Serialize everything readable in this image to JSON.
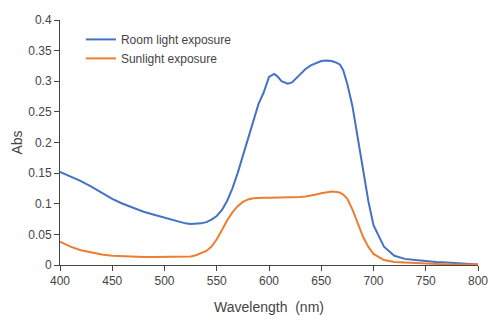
{
  "chart_data": {
    "type": "line",
    "xlabel": "Wavelength  (nm)",
    "ylabel": "Abs",
    "xlim": [
      400,
      800
    ],
    "ylim": [
      0,
      0.4
    ],
    "xticks": [
      400,
      450,
      500,
      550,
      600,
      650,
      700,
      750,
      800
    ],
    "yticks": [
      0,
      0.05,
      0.1,
      0.15,
      0.2,
      0.25,
      0.3,
      0.35,
      0.4
    ],
    "grid": false,
    "legend": "upper left",
    "series": [
      {
        "name": "Room light exposure",
        "color": "#4472C4",
        "x": [
          400,
          410,
          420,
          430,
          440,
          450,
          460,
          470,
          480,
          490,
          500,
          510,
          515,
          520,
          525,
          530,
          535,
          540,
          545,
          550,
          555,
          560,
          565,
          570,
          575,
          580,
          585,
          590,
          595,
          600,
          605,
          608,
          612,
          618,
          622,
          626,
          630,
          635,
          640,
          645,
          650,
          655,
          660,
          665,
          668,
          671,
          675,
          680,
          685,
          690,
          695,
          700,
          710,
          720,
          730,
          740,
          750,
          760,
          770,
          780,
          790,
          800
        ],
        "values": [
          0.152,
          0.145,
          0.137,
          0.128,
          0.118,
          0.108,
          0.1,
          0.093,
          0.087,
          0.082,
          0.077,
          0.072,
          0.07,
          0.068,
          0.067,
          0.067,
          0.068,
          0.07,
          0.074,
          0.08,
          0.09,
          0.105,
          0.125,
          0.15,
          0.178,
          0.208,
          0.238,
          0.263,
          0.282,
          0.307,
          0.312,
          0.308,
          0.3,
          0.296,
          0.298,
          0.305,
          0.312,
          0.32,
          0.326,
          0.33,
          0.333,
          0.334,
          0.333,
          0.33,
          0.327,
          0.318,
          0.295,
          0.258,
          0.205,
          0.152,
          0.105,
          0.065,
          0.03,
          0.015,
          0.01,
          0.008,
          0.006,
          0.005,
          0.004,
          0.003,
          0.002,
          0.001
        ]
      },
      {
        "name": "Sunlight exposure",
        "color": "#ED7D31",
        "x": [
          400,
          410,
          420,
          430,
          440,
          450,
          460,
          470,
          480,
          490,
          500,
          510,
          515,
          520,
          525,
          530,
          535,
          540,
          545,
          550,
          555,
          560,
          565,
          570,
          575,
          580,
          585,
          590,
          595,
          600,
          605,
          610,
          615,
          620,
          625,
          630,
          635,
          640,
          645,
          650,
          655,
          660,
          665,
          668,
          671,
          675,
          680,
          685,
          690,
          695,
          700,
          710,
          720,
          730,
          740,
          750,
          760,
          770,
          780,
          790,
          800
        ],
        "values": [
          0.038,
          0.03,
          0.024,
          0.02,
          0.017,
          0.015,
          0.014,
          0.013,
          0.013,
          0.013,
          0.013,
          0.013,
          0.013,
          0.013,
          0.014,
          0.016,
          0.019,
          0.023,
          0.03,
          0.042,
          0.057,
          0.073,
          0.086,
          0.096,
          0.103,
          0.107,
          0.109,
          0.11,
          0.11,
          0.11,
          0.11,
          0.11,
          0.11,
          0.11,
          0.111,
          0.111,
          0.112,
          0.113,
          0.115,
          0.117,
          0.119,
          0.12,
          0.119,
          0.118,
          0.115,
          0.108,
          0.09,
          0.068,
          0.046,
          0.03,
          0.018,
          0.008,
          0.005,
          0.004,
          0.003,
          0.002,
          0.002,
          0.001,
          0.001,
          0.001,
          0.001
        ]
      }
    ]
  }
}
